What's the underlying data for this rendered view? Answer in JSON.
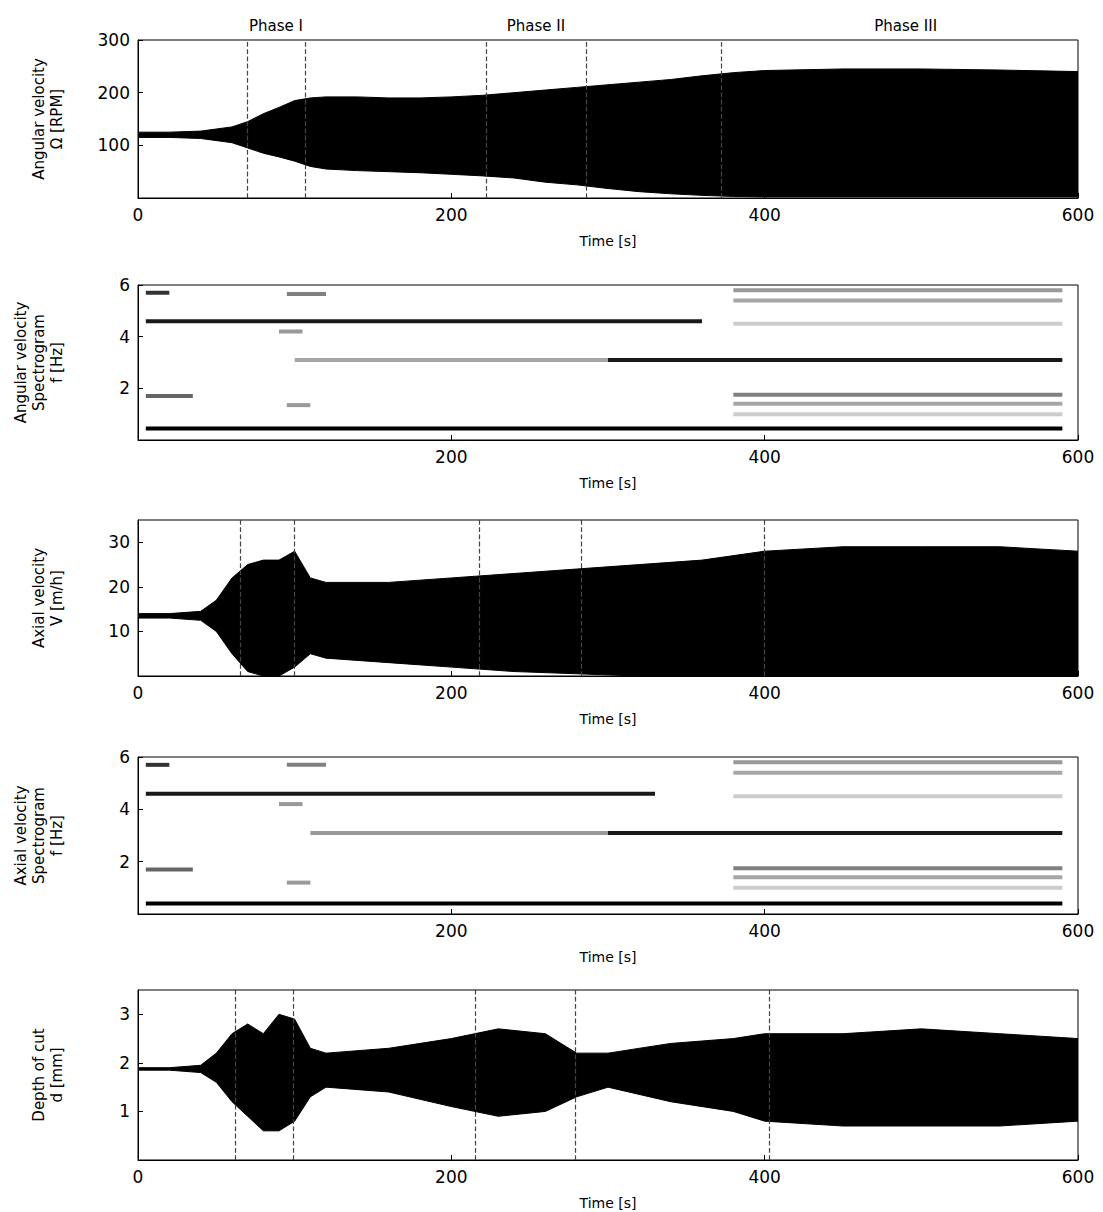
{
  "chart_data": [
    {
      "type": "band",
      "xlabel": "Time [s]",
      "ylabel": [
        "Angular velocity",
        "Ω [RPM]"
      ],
      "xlim": [
        0,
        600
      ],
      "xticks": [
        0,
        200,
        400,
        600
      ],
      "ylim": [
        0,
        300
      ],
      "yticks": [
        100,
        200,
        300
      ],
      "grid": false,
      "color": "#000000",
      "annotations": [
        {
          "text": "Phase I",
          "x": 88
        },
        {
          "text": "Phase II",
          "x": 254
        },
        {
          "text": "Phase III",
          "x": 490
        }
      ],
      "phase_lines": [
        70,
        107,
        222,
        286,
        372
      ],
      "x": [
        0,
        20,
        40,
        60,
        70,
        80,
        90,
        100,
        110,
        120,
        140,
        160,
        180,
        200,
        220,
        240,
        260,
        280,
        300,
        320,
        340,
        360,
        380,
        400,
        450,
        500,
        550,
        600
      ],
      "lower": [
        115,
        115,
        113,
        105,
        95,
        85,
        78,
        70,
        60,
        55,
        52,
        50,
        48,
        45,
        42,
        38,
        30,
        25,
        18,
        12,
        8,
        5,
        3,
        2,
        2,
        2,
        2,
        2
      ],
      "upper": [
        125,
        125,
        127,
        135,
        145,
        160,
        172,
        185,
        190,
        192,
        192,
        190,
        190,
        192,
        195,
        200,
        205,
        210,
        215,
        220,
        225,
        232,
        238,
        242,
        245,
        245,
        243,
        240
      ]
    },
    {
      "type": "spectrogram",
      "xlabel": "Time [s]",
      "ylabel": [
        "Angular velocity",
        "Spectrogram",
        "f [Hz]"
      ],
      "xlim": [
        0,
        600
      ],
      "xticks": [
        200,
        400,
        600
      ],
      "ylim": [
        0,
        6
      ],
      "yticks": [
        2,
        4,
        6
      ],
      "grid": false,
      "bands": [
        {
          "f": 0.45,
          "t_start": 5,
          "t_end": 590,
          "intensity": 1
        },
        {
          "f": 4.6,
          "t_start": 5,
          "t_end": 360,
          "intensity": 0.9
        },
        {
          "f": 3.1,
          "t_start": 100,
          "t_end": 300,
          "intensity": 0.35
        },
        {
          "f": 3.1,
          "t_start": 300,
          "t_end": 590,
          "intensity": 0.9
        },
        {
          "f": 5.7,
          "t_start": 5,
          "t_end": 20,
          "intensity": 0.8
        },
        {
          "f": 5.65,
          "t_start": 95,
          "t_end": 120,
          "intensity": 0.5
        },
        {
          "f": 1.7,
          "t_start": 5,
          "t_end": 35,
          "intensity": 0.6
        },
        {
          "f": 1.35,
          "t_start": 95,
          "t_end": 110,
          "intensity": 0.4
        },
        {
          "f": 4.2,
          "t_start": 90,
          "t_end": 105,
          "intensity": 0.4
        },
        {
          "f": 1.75,
          "t_start": 380,
          "t_end": 590,
          "intensity": 0.5
        },
        {
          "f": 1.4,
          "t_start": 380,
          "t_end": 590,
          "intensity": 0.35
        },
        {
          "f": 1.0,
          "t_start": 380,
          "t_end": 590,
          "intensity": 0.2
        },
        {
          "f": 4.5,
          "t_start": 380,
          "t_end": 590,
          "intensity": 0.2
        },
        {
          "f": 5.4,
          "t_start": 380,
          "t_end": 590,
          "intensity": 0.35
        },
        {
          "f": 5.8,
          "t_start": 380,
          "t_end": 590,
          "intensity": 0.4
        }
      ]
    },
    {
      "type": "band",
      "xlabel": "Time [s]",
      "ylabel": [
        "Axial velocity",
        "V [m/h]"
      ],
      "xlim": [
        0,
        600
      ],
      "xticks": [
        0,
        200,
        400,
        600
      ],
      "ylim": [
        0,
        35
      ],
      "yticks": [
        10,
        20,
        30
      ],
      "grid": false,
      "color": "#000000",
      "phase_lines": [
        65,
        100,
        218,
        283,
        400
      ],
      "x": [
        0,
        20,
        40,
        50,
        60,
        70,
        80,
        90,
        100,
        110,
        120,
        160,
        200,
        240,
        280,
        320,
        360,
        400,
        450,
        500,
        550,
        600
      ],
      "lower": [
        13,
        13,
        12.5,
        10,
        5,
        1,
        0,
        0,
        2,
        5,
        4,
        3,
        2,
        1,
        0.5,
        0,
        0,
        0,
        0,
        0,
        0,
        0
      ],
      "upper": [
        14,
        14,
        14.5,
        17,
        22,
        25,
        26,
        26,
        28,
        22,
        21,
        21,
        22,
        23,
        24,
        25,
        26,
        28,
        29,
        29,
        29,
        28
      ]
    },
    {
      "type": "spectrogram",
      "xlabel": "Time [s]",
      "ylabel": [
        "Axial velocity",
        "Spectrogram",
        "f [Hz]"
      ],
      "xlim": [
        0,
        600
      ],
      "xticks": [
        200,
        400,
        600
      ],
      "ylim": [
        0,
        6
      ],
      "yticks": [
        2,
        4,
        6
      ],
      "grid": false,
      "bands": [
        {
          "f": 0.4,
          "t_start": 5,
          "t_end": 590,
          "intensity": 1
        },
        {
          "f": 4.6,
          "t_start": 5,
          "t_end": 330,
          "intensity": 0.9
        },
        {
          "f": 3.1,
          "t_start": 110,
          "t_end": 300,
          "intensity": 0.4
        },
        {
          "f": 3.1,
          "t_start": 300,
          "t_end": 590,
          "intensity": 0.9
        },
        {
          "f": 5.7,
          "t_start": 5,
          "t_end": 20,
          "intensity": 0.8
        },
        {
          "f": 5.7,
          "t_start": 95,
          "t_end": 120,
          "intensity": 0.5
        },
        {
          "f": 1.7,
          "t_start": 5,
          "t_end": 35,
          "intensity": 0.6
        },
        {
          "f": 1.2,
          "t_start": 95,
          "t_end": 110,
          "intensity": 0.4
        },
        {
          "f": 4.2,
          "t_start": 90,
          "t_end": 105,
          "intensity": 0.4
        },
        {
          "f": 1.75,
          "t_start": 380,
          "t_end": 590,
          "intensity": 0.5
        },
        {
          "f": 1.4,
          "t_start": 380,
          "t_end": 590,
          "intensity": 0.35
        },
        {
          "f": 1.0,
          "t_start": 380,
          "t_end": 590,
          "intensity": 0.2
        },
        {
          "f": 4.5,
          "t_start": 380,
          "t_end": 590,
          "intensity": 0.2
        },
        {
          "f": 5.4,
          "t_start": 380,
          "t_end": 590,
          "intensity": 0.35
        },
        {
          "f": 5.8,
          "t_start": 380,
          "t_end": 590,
          "intensity": 0.4
        }
      ]
    },
    {
      "type": "band",
      "xlabel": "Time [s]",
      "ylabel": [
        "Depth of cut",
        "d [mm]"
      ],
      "xlim": [
        0,
        600
      ],
      "xticks": [
        0,
        200,
        400,
        600
      ],
      "ylim": [
        0,
        3.5
      ],
      "yticks": [
        1,
        2,
        3
      ],
      "grid": false,
      "color": "#000000",
      "phase_lines": [
        62,
        99,
        215,
        279,
        403
      ],
      "x": [
        0,
        20,
        40,
        50,
        60,
        70,
        80,
        90,
        100,
        110,
        120,
        160,
        200,
        230,
        260,
        280,
        300,
        340,
        380,
        400,
        450,
        500,
        550,
        600
      ],
      "lower": [
        1.85,
        1.85,
        1.8,
        1.6,
        1.2,
        0.9,
        0.6,
        0.6,
        0.8,
        1.3,
        1.5,
        1.4,
        1.1,
        0.9,
        1.0,
        1.3,
        1.5,
        1.2,
        1.0,
        0.8,
        0.7,
        0.7,
        0.7,
        0.8
      ],
      "upper": [
        1.9,
        1.9,
        1.95,
        2.2,
        2.6,
        2.8,
        2.6,
        3.0,
        2.9,
        2.3,
        2.2,
        2.3,
        2.5,
        2.7,
        2.6,
        2.2,
        2.2,
        2.4,
        2.5,
        2.6,
        2.6,
        2.7,
        2.6,
        2.5
      ]
    }
  ]
}
